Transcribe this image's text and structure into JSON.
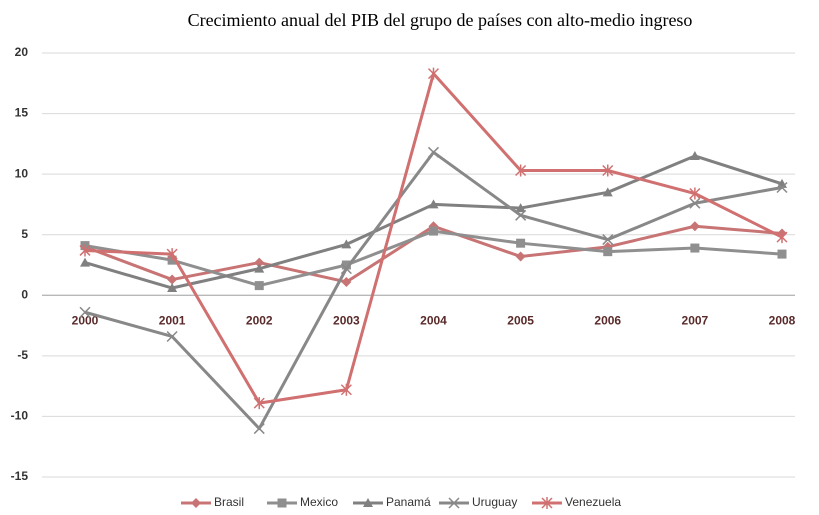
{
  "chart_data": {
    "type": "line",
    "title": "Crecimiento anual del PIB del grupo de países con alto-medio ingreso",
    "categories": [
      "2000",
      "2001",
      "2002",
      "2003",
      "2004",
      "2005",
      "2006",
      "2007",
      "2008"
    ],
    "series": [
      {
        "name": "Brasil",
        "color": "#c87474",
        "marker": "diamond",
        "values": [
          4.0,
          1.3,
          2.7,
          1.1,
          5.7,
          3.2,
          4.0,
          5.7,
          5.1
        ]
      },
      {
        "name": "Mexico",
        "color": "#8f8f8f",
        "marker": "square",
        "values": [
          4.1,
          2.9,
          0.8,
          2.5,
          5.3,
          4.3,
          3.6,
          3.9,
          3.4
        ]
      },
      {
        "name": "Panamá",
        "color": "#808080",
        "marker": "triangle",
        "values": [
          2.7,
          0.6,
          2.2,
          4.2,
          7.5,
          7.2,
          8.5,
          11.5,
          9.2
        ]
      },
      {
        "name": "Uruguay",
        "color": "#888888",
        "marker": "x",
        "values": [
          -1.4,
          -3.4,
          -11.0,
          2.2,
          11.8,
          6.6,
          4.6,
          7.6,
          8.9
        ]
      },
      {
        "name": "Venezuela",
        "color": "#d07070",
        "marker": "star",
        "values": [
          3.7,
          3.4,
          -8.9,
          -7.8,
          18.3,
          10.3,
          10.3,
          8.4,
          4.8
        ]
      }
    ],
    "ylim": [
      -15,
      20
    ],
    "yticks": [
      -15,
      -10,
      -5,
      0,
      5,
      10,
      15,
      20
    ],
    "grid": true,
    "legend_position": "bottom"
  }
}
